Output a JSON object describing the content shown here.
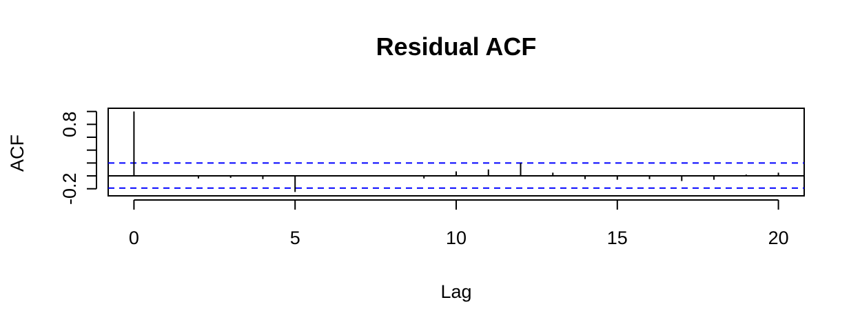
{
  "chart_data": {
    "type": "bar",
    "title": "Residual ACF",
    "xlabel": "Lag",
    "ylabel": "ACF",
    "xlim": [
      -0.8,
      20.8
    ],
    "ylim": [
      -0.31,
      1.05
    ],
    "x_ticks": [
      0,
      5,
      10,
      15,
      20
    ],
    "x_tick_labels": [
      "0",
      "5",
      "10",
      "15",
      "20"
    ],
    "y_ticks": [
      -0.2,
      0.0,
      0.2,
      0.4,
      0.6,
      0.8,
      1.0
    ],
    "y_tick_labels": [
      "-0.2",
      "",
      "",
      "",
      "",
      "0.8",
      ""
    ],
    "lags": [
      0,
      1,
      2,
      3,
      4,
      5,
      6,
      7,
      8,
      9,
      10,
      11,
      12,
      13,
      14,
      15,
      16,
      17,
      18,
      19,
      20
    ],
    "values": [
      1.0,
      0.01,
      -0.04,
      -0.03,
      -0.05,
      -0.25,
      0.01,
      0.0,
      0.01,
      -0.04,
      0.07,
      0.1,
      0.2,
      0.05,
      -0.05,
      -0.06,
      -0.05,
      -0.08,
      -0.06,
      0.02,
      0.05
    ],
    "confidence_limits": [
      0.2,
      -0.19
    ],
    "confidence_color": "#0000ff",
    "bar_color": "#000000",
    "grid": false
  }
}
